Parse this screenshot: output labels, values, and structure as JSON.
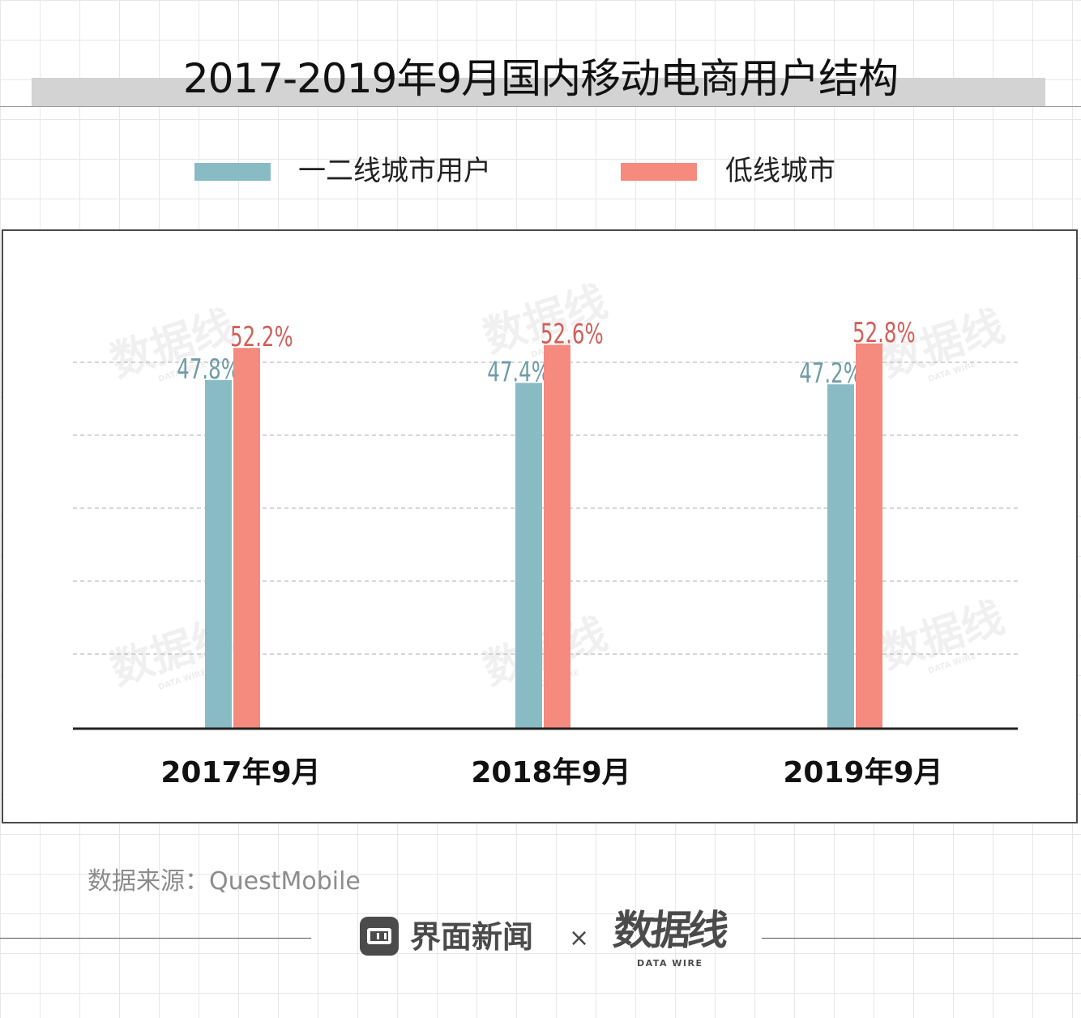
{
  "title": "2017-2019年9月国内移动电商用户结构",
  "legend": [
    {
      "label": "一二线城市用户",
      "color": "#89BBC4"
    },
    {
      "label": "低线城市",
      "color": "#F58A7F"
    }
  ],
  "source": "数据来源：QuestMobile",
  "footer": {
    "brand_name": "界面新闻",
    "separator": "×",
    "logo_text": "数据线",
    "logo_sub": "DATA WIRE"
  },
  "watermark": {
    "text": "数据线",
    "sub": "DATA WIRE"
  },
  "colors": {
    "series_1": "#89BBC4",
    "series_2": "#F58A7F",
    "label_1": "#6f9ca6",
    "label_2": "#d0605a",
    "axis": "#222222"
  },
  "chart_data": {
    "type": "bar",
    "categories": [
      "2017年9月",
      "2018年9月",
      "2019年9月"
    ],
    "series": [
      {
        "name": "一二线城市用户",
        "values": [
          47.8,
          47.4,
          47.2
        ],
        "labels": [
          "47.8%",
          "47.4%",
          "47.2%"
        ]
      },
      {
        "name": "低线城市",
        "values": [
          52.2,
          52.6,
          52.8
        ],
        "labels": [
          "52.2%",
          "52.6%",
          "52.8%"
        ]
      }
    ],
    "ylim": [
      0,
      55
    ],
    "grid": true,
    "legend_position": "top"
  }
}
